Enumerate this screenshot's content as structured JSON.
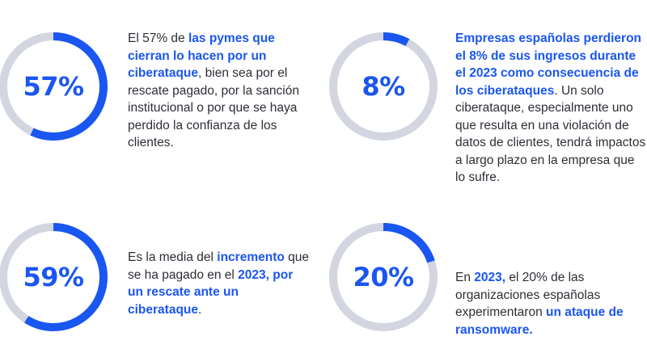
{
  "colors": {
    "accent": "#1a56f0",
    "track": "#d3d6e0",
    "text": "#2d2f36"
  },
  "stats": [
    {
      "value": 57,
      "label": "57%",
      "segments": [
        {
          "t": "El 57% de ",
          "b": false
        },
        {
          "t": "las pymes que cierran lo hacen por un ciberataque",
          "b": true
        },
        {
          "t": ", bien sea por el rescate pagado, por la sanción institucional o por que se haya perdido la confianza de los clientes.",
          "b": false
        }
      ]
    },
    {
      "value": 8,
      "label": "8%",
      "segments": [
        {
          "t": "Empresas españolas perdieron el 8% de sus ingresos durante el 2023 como consecuencia de los ciberataques",
          "b": true
        },
        {
          "t": ". Un solo ciberataque, especialmente uno que resulta en una violación de datos de clientes, tendrá impactos a largo plazo en la empresa que lo sufre.",
          "b": false
        }
      ]
    },
    {
      "value": 59,
      "label": "59%",
      "segments": [
        {
          "t": "Es la media del ",
          "b": false
        },
        {
          "t": "incremento",
          "b": true
        },
        {
          "t": " que se ha pagado en el ",
          "b": false
        },
        {
          "t": "2023, por un rescate ante un ciberataque",
          "b": true
        },
        {
          "t": ".",
          "b": false
        }
      ]
    },
    {
      "value": 20,
      "label": "20%",
      "segments": [
        {
          "t": "En ",
          "b": false
        },
        {
          "t": "2023,",
          "b": true
        },
        {
          "t": " el 20% de las organizaciones españolas experimentaron ",
          "b": false
        },
        {
          "t": "un ataque de ransomware.",
          "b": true
        }
      ]
    }
  ]
}
